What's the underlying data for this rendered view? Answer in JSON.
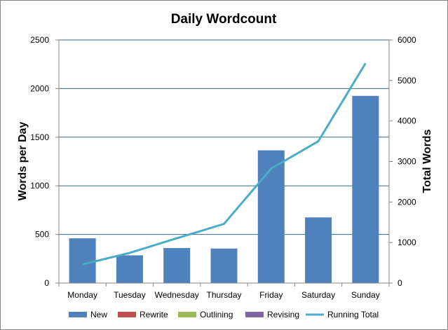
{
  "chart_data": {
    "type": "bar",
    "title": "Daily Wordcount",
    "xlabel": "",
    "ylabel": "Words per Day",
    "y2label": "Total Words",
    "categories": [
      "Monday",
      "Tuesday",
      "Wednesday",
      "Thursday",
      "Friday",
      "Saturday",
      "Sunday"
    ],
    "ylim": [
      0,
      2500
    ],
    "y_ticks": [
      "0",
      "500",
      "1000",
      "1500",
      "2000",
      "2500"
    ],
    "y2lim": [
      0,
      6000
    ],
    "y2_ticks": [
      "0",
      "1000",
      "2000",
      "3000",
      "4000",
      "5000",
      "6000"
    ],
    "grid": true,
    "legend_position": "bottom",
    "series": [
      {
        "name": "New",
        "type": "bar",
        "color": "#4F81BD",
        "values": [
          460,
          285,
          360,
          355,
          1365,
          675,
          1925
        ]
      },
      {
        "name": "Rewrite",
        "type": "bar",
        "color": "#C0504D",
        "values": [
          0,
          0,
          0,
          0,
          0,
          0,
          0
        ]
      },
      {
        "name": "Outlining",
        "type": "bar",
        "color": "#9BBB59",
        "values": [
          0,
          0,
          0,
          0,
          0,
          0,
          0
        ]
      },
      {
        "name": "Revising",
        "type": "bar",
        "color": "#8064A2",
        "values": [
          0,
          0,
          0,
          0,
          0,
          0,
          0
        ]
      },
      {
        "name": "Running Total",
        "type": "line",
        "axis": "secondary",
        "color": "#4BACC6",
        "values": [
          460,
          745,
          1105,
          1460,
          2825,
          3500,
          5425
        ]
      }
    ]
  }
}
